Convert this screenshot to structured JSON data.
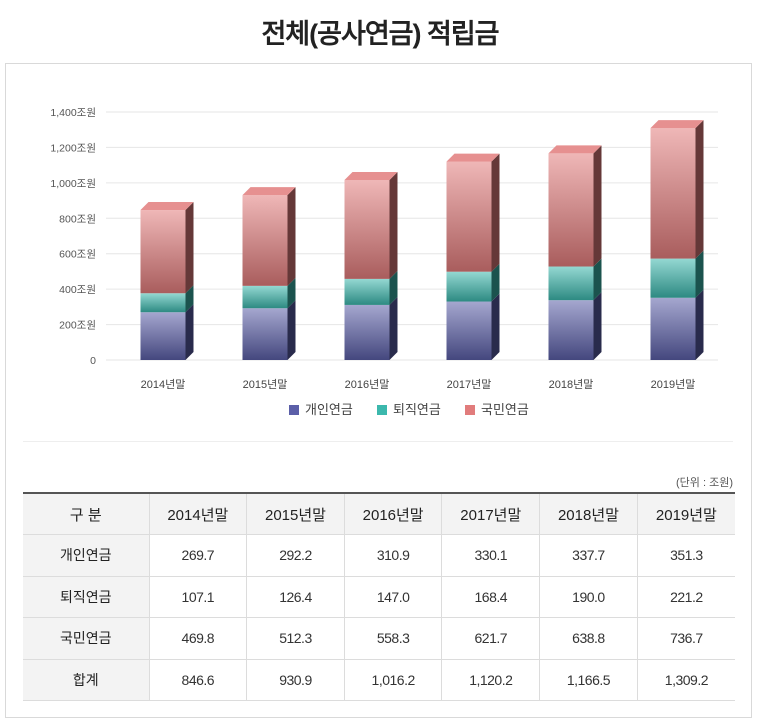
{
  "page": {
    "title": "전체(공사연금) 적립금"
  },
  "colors": {
    "personal": "#5b5fa8",
    "retirement": "#3cb8ad",
    "national": "#e17c7c"
  },
  "chart_data": {
    "type": "bar",
    "stacked": true,
    "style": "3d-stacked-columns",
    "title": "",
    "xlabel": "",
    "ylabel": "",
    "ylim": [
      0,
      1400
    ],
    "yticks": [
      0,
      200,
      400,
      600,
      800,
      1000,
      1200,
      1400
    ],
    "ytick_labels": [
      "0",
      "200조원",
      "400조원",
      "600조원",
      "800조원",
      "1,000조원",
      "1,200조원",
      "1,400조원"
    ],
    "categories": [
      "2014년말",
      "2015년말",
      "2016년말",
      "2017년말",
      "2018년말",
      "2019년말"
    ],
    "series": [
      {
        "name": "개인연금",
        "color": "#5b5fa8",
        "values": [
          269.7,
          292.2,
          310.9,
          330.1,
          337.7,
          351.3
        ]
      },
      {
        "name": "퇴직연금",
        "color": "#3cb8ad",
        "values": [
          107.1,
          126.4,
          147.0,
          168.4,
          190.0,
          221.2
        ]
      },
      {
        "name": "국민연금",
        "color": "#e17c7c",
        "values": [
          469.8,
          512.3,
          558.3,
          621.7,
          638.8,
          736.7
        ]
      }
    ],
    "grid": true,
    "legend": "bottom-center"
  },
  "table": {
    "unit": "(단위 : 조원)",
    "headers": [
      "구 분",
      "2014년말",
      "2015년말",
      "2016년말",
      "2017년말",
      "2018년말",
      "2019년말"
    ],
    "rows": [
      {
        "label": "개인연금",
        "cells": [
          "269.7",
          "292.2",
          "310.9",
          "330.1",
          "337.7",
          "351.3"
        ]
      },
      {
        "label": "퇴직연금",
        "cells": [
          "107.1",
          "126.4",
          "147.0",
          "168.4",
          "190.0",
          "221.2"
        ]
      },
      {
        "label": "국민연금",
        "cells": [
          "469.8",
          "512.3",
          "558.3",
          "621.7",
          "638.8",
          "736.7"
        ]
      },
      {
        "label": "합계",
        "cells": [
          "846.6",
          "930.9",
          "1,016.2",
          "1,120.2",
          "1,166.5",
          "1,309.2"
        ]
      }
    ]
  }
}
